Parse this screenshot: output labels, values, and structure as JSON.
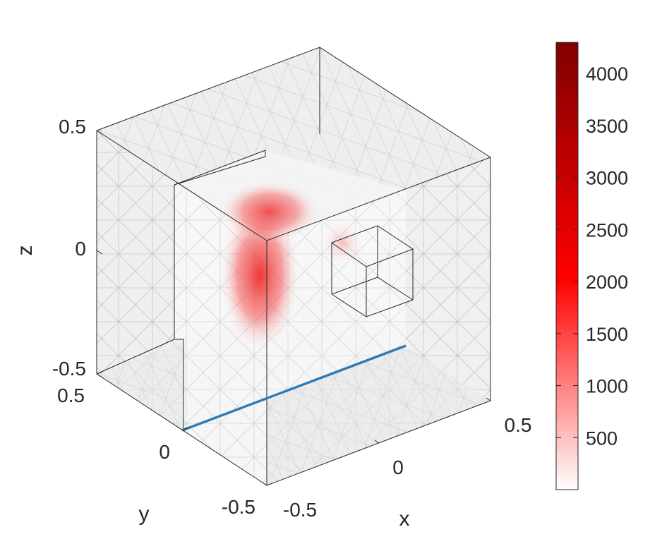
{
  "chart_data": {
    "type": "heatmap",
    "title": "",
    "xlabel": "x",
    "ylabel": "y",
    "zlabel": "z",
    "xlim": [
      -0.5,
      0.5
    ],
    "ylim": [
      -0.5,
      0.5
    ],
    "zlim": [
      -0.5,
      0.5
    ],
    "x_ticks": [
      "-0.5",
      "0",
      "0.5"
    ],
    "y_ticks": [
      "-0.5",
      "0",
      "0.5"
    ],
    "z_ticks": [
      "-0.5",
      "0",
      "0.5"
    ],
    "colorbar": {
      "range": [
        0,
        4300
      ],
      "ticks": [
        "500",
        "1000",
        "1500",
        "2000",
        "2500",
        "3000",
        "3500",
        "4000"
      ],
      "colors": [
        "#ffffff",
        "#ff0000",
        "#800000"
      ]
    },
    "hotspots": [
      {
        "value": 2300
      },
      {
        "value": 1700
      },
      {
        "value": 1200
      }
    ],
    "line_color": "#2e7bb3"
  }
}
